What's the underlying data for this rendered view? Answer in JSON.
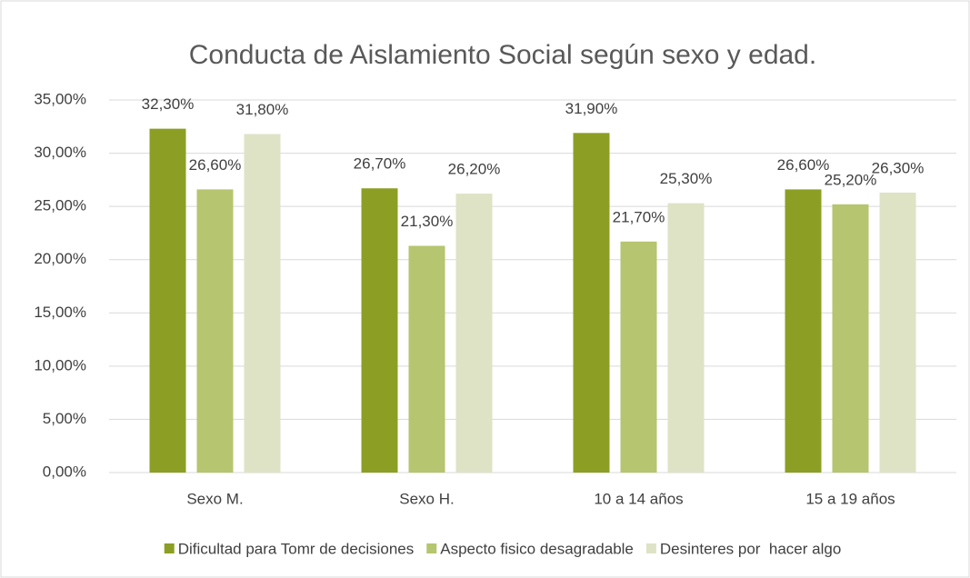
{
  "chart_data": {
    "type": "bar",
    "title": "Conducta de Aislamiento Social según sexo y edad.",
    "categories": [
      "Sexo M.",
      "Sexo H.",
      "10 a 14 años",
      "15 a 19 años"
    ],
    "series": [
      {
        "name": "Dificultad para Tomr de decisiones",
        "color": "#8c9f24",
        "values": [
          32.3,
          26.7,
          31.9,
          26.6
        ],
        "value_labels": [
          "32,30%",
          "26,70%",
          "31,90%",
          "26,60%"
        ]
      },
      {
        "name": "Aspecto fisico desagradable",
        "color": "#b6c56f",
        "values": [
          26.6,
          21.3,
          21.7,
          25.2
        ],
        "value_labels": [
          "26,60%",
          "21,30%",
          "21,70%",
          "25,20%"
        ]
      },
      {
        "name": "Desinteres por  hacer algo",
        "color": "#dee3c5",
        "values": [
          31.8,
          26.2,
          25.3,
          26.3
        ],
        "value_labels": [
          "31,80%",
          "26,20%",
          "25,30%",
          "26,30%"
        ]
      }
    ],
    "ylim": [
      0,
      35
    ],
    "yticks": [
      {
        "value": 0,
        "label": "0,00%"
      },
      {
        "value": 5,
        "label": "5,00%"
      },
      {
        "value": 10,
        "label": "10,00%"
      },
      {
        "value": 15,
        "label": "15,00%"
      },
      {
        "value": 20,
        "label": "20,00%"
      },
      {
        "value": 25,
        "label": "25,00%"
      },
      {
        "value": 30,
        "label": "30,00%"
      },
      {
        "value": 35,
        "label": "35,00%"
      }
    ],
    "grid": true,
    "legend": "bottom"
  }
}
